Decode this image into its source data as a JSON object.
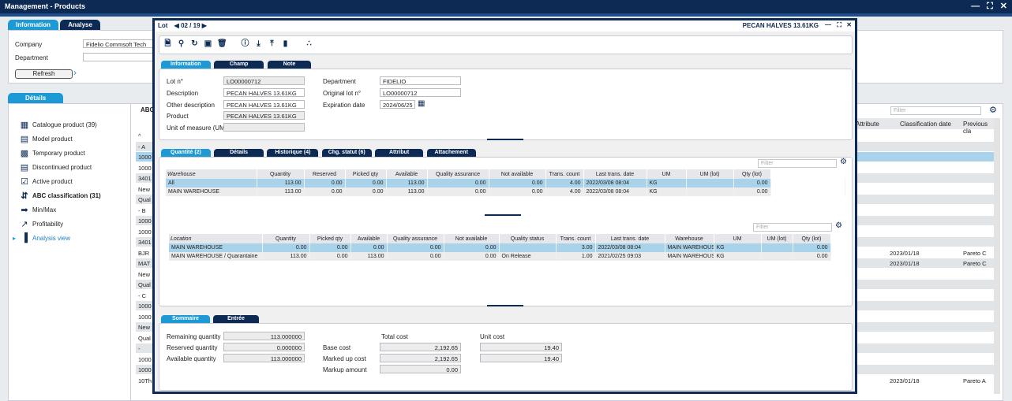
{
  "app": {
    "title": "Management - Products"
  },
  "main_tabs": [
    "Information",
    "Analyse"
  ],
  "company": {
    "label": "Company",
    "value": "Fidelio Commsoft Tech"
  },
  "department": {
    "label": "Department",
    "value": ""
  },
  "refresh": "Refresh",
  "details_tab": "Détails",
  "nav": [
    {
      "label": "Catalogue product (39)",
      "icon": "book-icon",
      "bold": false
    },
    {
      "label": "Model product",
      "icon": "document-icon",
      "bold": false
    },
    {
      "label": "Temporary product",
      "icon": "grid-icon",
      "bold": false
    },
    {
      "label": "Discontinued product",
      "icon": "document-icon",
      "bold": false
    },
    {
      "label": "Active product",
      "icon": "check-icon",
      "bold": false
    },
    {
      "label": "ABC classification (31)",
      "icon": "sort-icon",
      "bold": true
    },
    {
      "label": "Min/Max",
      "icon": "arrow-circle-icon",
      "bold": false
    },
    {
      "label": "Profitability",
      "icon": "line-chart-icon",
      "bold": false
    },
    {
      "label": "Analysis view",
      "icon": "bar-chart-icon",
      "bold": false,
      "link": true
    }
  ],
  "bg_table": {
    "header_left": "ABC",
    "filter": "Filter",
    "col_attribute": "Attribute",
    "col_classification_date": "Classification date",
    "col_previous": "Previous cla",
    "rows": [
      {
        "c1": "^",
        "date": "",
        "prev": "",
        "style": ""
      },
      {
        "c1": "- A",
        "date": "",
        "prev": "",
        "style": "alt"
      },
      {
        "c1": "1000",
        "date": "",
        "prev": "",
        "style": "sel"
      },
      {
        "c1": "1000",
        "date": "",
        "prev": "",
        "style": ""
      },
      {
        "c1": "3401",
        "date": "",
        "prev": "",
        "style": "alt"
      },
      {
        "c1": "New",
        "date": "",
        "prev": "",
        "style": ""
      },
      {
        "c1": "Qual",
        "date": "",
        "prev": "",
        "style": "alt"
      },
      {
        "c1": "- B",
        "date": "",
        "prev": "",
        "style": ""
      },
      {
        "c1": "1000",
        "date": "",
        "prev": "",
        "style": "alt"
      },
      {
        "c1": "1000",
        "date": "",
        "prev": "",
        "style": ""
      },
      {
        "c1": "3401",
        "date": "",
        "prev": "",
        "style": "alt"
      },
      {
        "c1": "BJR",
        "date": "2023/01/18",
        "prev": "Pareto C",
        "style": ""
      },
      {
        "c1": "MAT",
        "date": "2023/01/18",
        "prev": "Pareto C",
        "style": "alt"
      },
      {
        "c1": "New",
        "date": "",
        "prev": "",
        "style": ""
      },
      {
        "c1": "Qual",
        "date": "",
        "prev": "",
        "style": "alt"
      },
      {
        "c1": "- C",
        "date": "",
        "prev": "",
        "style": ""
      },
      {
        "c1": "1000",
        "date": "",
        "prev": "",
        "style": "alt"
      },
      {
        "c1": "1000",
        "date": "",
        "prev": "",
        "style": ""
      },
      {
        "c1": "New",
        "date": "",
        "prev": "",
        "style": "alt"
      },
      {
        "c1": "Qual",
        "date": "",
        "prev": "",
        "style": ""
      },
      {
        "c1": "- ",
        "date": "",
        "prev": "",
        "style": "alt"
      },
      {
        "c1": "1000",
        "date": "",
        "prev": "",
        "style": ""
      },
      {
        "c1": "1000",
        "date": "",
        "prev": "",
        "style": "alt"
      },
      {
        "c1": "10Th",
        "date": "2023/01/18",
        "prev": "Pareto A",
        "style": ""
      }
    ]
  },
  "modal": {
    "title": "Lot",
    "counter": "02 / 19",
    "product_title": "PECAN HALVES 13.61KG",
    "info_tabs": [
      "Information",
      "Champ",
      "Note"
    ],
    "fields": {
      "lot_label": "Lot n°",
      "lot": "LO00000712",
      "desc_label": "Description",
      "desc": "PECAN HALVES 13.61KG",
      "other_label": "Other description",
      "other": "PECAN HALVES 13.61KG",
      "product_label": "Product",
      "product": "PECAN HALVES 13.61KG",
      "uom_label": "Unit of measure (UM)",
      "uom": "",
      "dept_label": "Department",
      "dept": "FIDELIO",
      "orig_label": "Original lot n°",
      "orig": "LO00000712",
      "exp_label": "Expiration date",
      "exp": "2024/06/25"
    },
    "qty_tabs": [
      "Quantité (2)",
      "Détails",
      "Historique (4)",
      "Chg. statut (6)",
      "Attribut",
      "Attachement"
    ],
    "filter": "Filter",
    "warehouse_grid": {
      "headers": [
        "Warehouse",
        "Quantity",
        "Reserved",
        "Picked qty",
        "Available",
        "Quality assurance",
        "Not available",
        "Trans. count",
        "Last trans. date",
        "UM",
        "UM (lot)",
        "Qty (lot)"
      ],
      "rows": [
        [
          "All",
          "113.00",
          "0.00",
          "0.00",
          "113.00",
          "0.00",
          "0.00",
          "4.00",
          "2022/03/08 08:04",
          "KG",
          "",
          "0.00"
        ],
        [
          "MAIN WAREHOUSE",
          "113.00",
          "0.00",
          "0.00",
          "113.00",
          "0.00",
          "0.00",
          "4.00",
          "2022/03/08 08:04",
          "KG",
          "",
          "0.00"
        ]
      ]
    },
    "location_grid": {
      "headers": [
        "Location",
        "Quantity",
        "Picked qty",
        "Available",
        "Quality assurance",
        "Not available",
        "Quality status",
        "Trans. count",
        "Last trans. date",
        "Warehouse",
        "UM",
        "UM (lot)",
        "Qty (lot)"
      ],
      "rows": [
        [
          "MAIN WAREHOUSE",
          "0.00",
          "0.00",
          "0.00",
          "0.00",
          "0.00",
          "",
          "3.00",
          "2022/03/08 08:04",
          "MAIN WAREHOUSE",
          "KG",
          "",
          "0.00"
        ],
        [
          "MAIN WAREHOUSE / Quarantaine",
          "113.00",
          "0.00",
          "113.00",
          "0.00",
          "0.00",
          "On Release",
          "1.00",
          "2021/02/25 09:03",
          "MAIN WAREHOUSE",
          "KG",
          "",
          "0.00"
        ]
      ]
    },
    "summary_tabs": [
      "Sommaire",
      "Entrée"
    ],
    "summary": {
      "remaining_label": "Remaining quantity",
      "remaining": "113.000000",
      "reserved_label": "Reserved quantity",
      "reserved": "0.000000",
      "available_label": "Available quantity",
      "available": "113.000000",
      "total_cost_label": "Total cost",
      "unit_cost_label": "Unit cost",
      "base_label": "Base cost",
      "base_total": "2,192.65",
      "base_unit": "19.40",
      "marked_label": "Marked up cost",
      "marked_total": "2,192.65",
      "marked_unit": "19.40",
      "markup_label": "Markup amount",
      "markup": "0.00"
    }
  },
  "colors": {
    "navy": "#0d2a55",
    "accent": "#1d9ad6",
    "selected": "#a9d3ea"
  }
}
